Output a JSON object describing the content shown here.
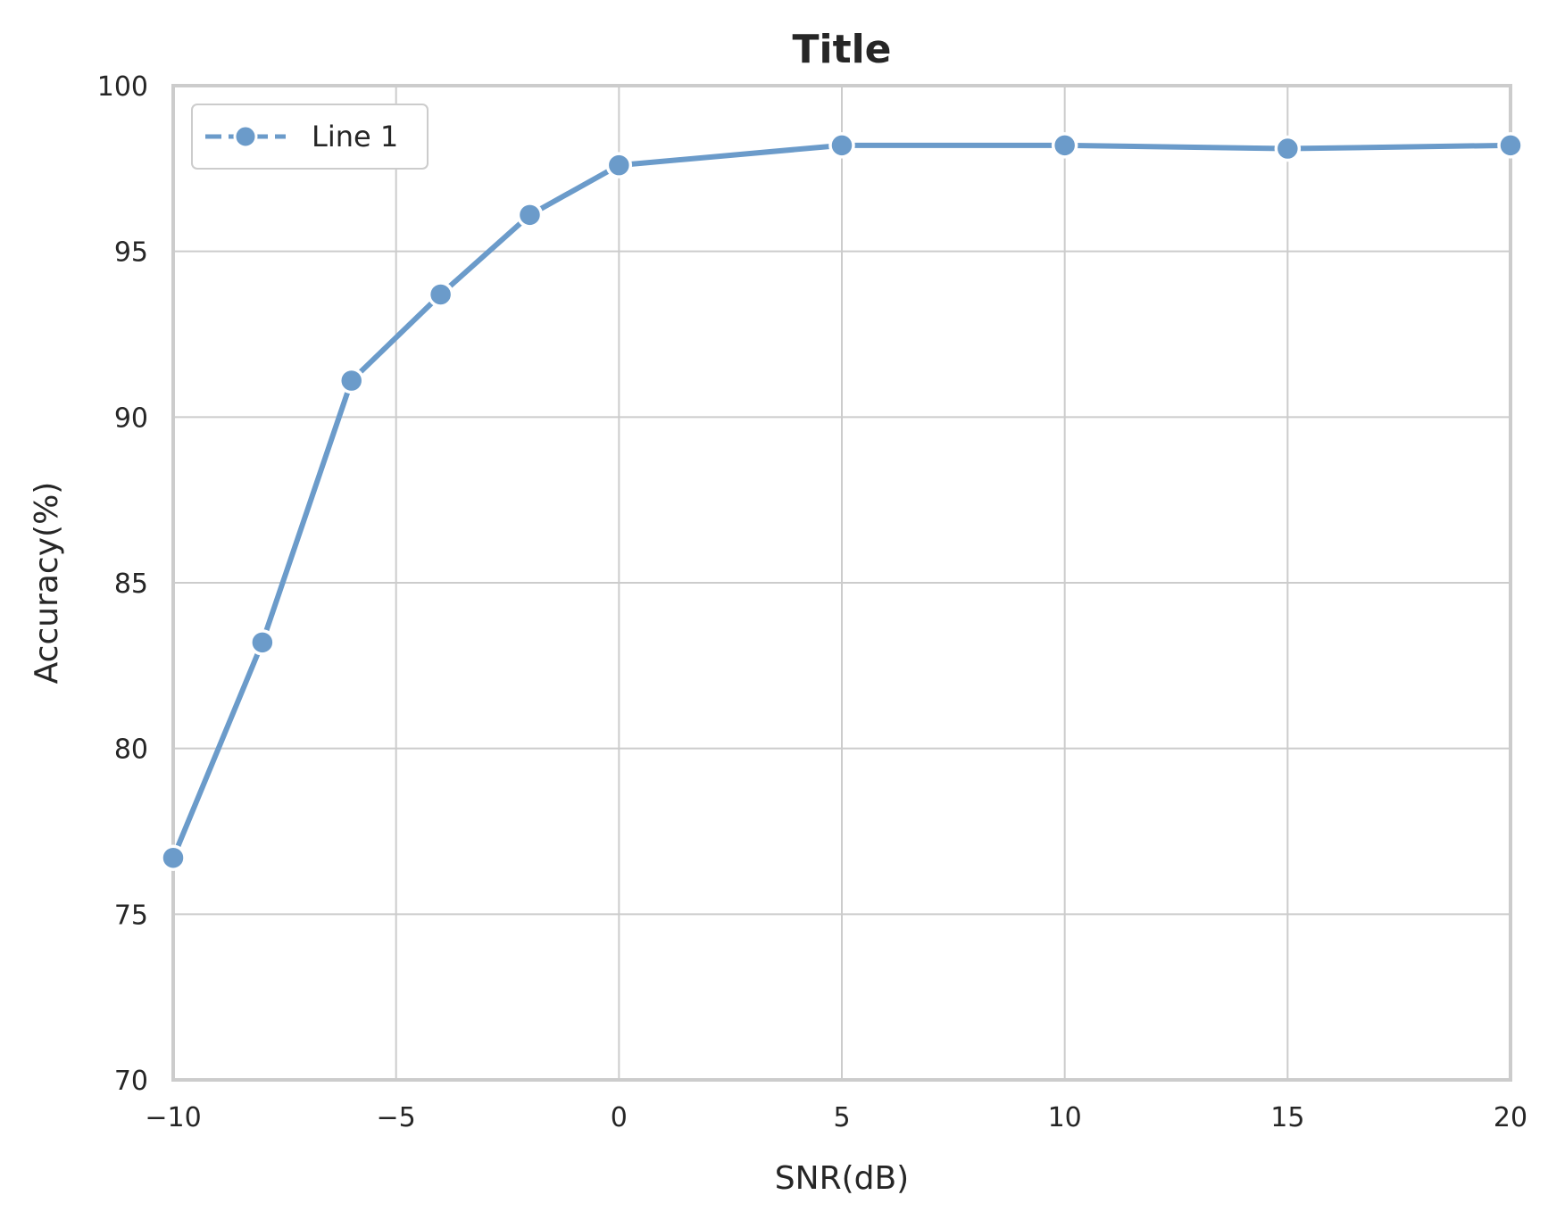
{
  "chart_data": {
    "type": "line",
    "title": "Title",
    "xlabel": "SNR(dB)",
    "ylabel": "Accuracy(%)",
    "xlim": [
      -10,
      20
    ],
    "ylim": [
      70,
      100
    ],
    "xticks": [
      -10,
      -5,
      0,
      5,
      10,
      15,
      20
    ],
    "xtick_labels": [
      "−10",
      "−5",
      "0",
      "5",
      "10",
      "15",
      "20"
    ],
    "yticks": [
      70,
      75,
      80,
      85,
      90,
      95,
      100
    ],
    "ytick_labels": [
      "70",
      "75",
      "80",
      "85",
      "90",
      "95",
      "100"
    ],
    "grid": true,
    "legend_position": "top-left",
    "series": [
      {
        "name": "Line 1",
        "color": "#6b9bca",
        "marker": "circle",
        "x": [
          -10,
          -8,
          -6,
          -4,
          -2,
          0,
          5,
          10,
          15,
          20
        ],
        "y": [
          76.7,
          83.2,
          91.1,
          93.7,
          96.1,
          97.6,
          98.2,
          98.2,
          98.1,
          98.2
        ]
      }
    ]
  }
}
